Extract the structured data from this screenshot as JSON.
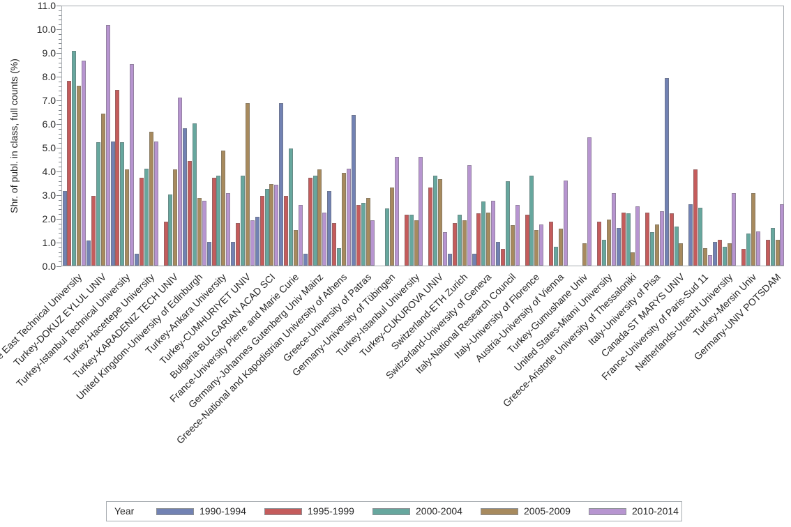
{
  "y_axis": {
    "min": 0,
    "max": 11,
    "major_step": 1,
    "minor_step": 0.2,
    "tick_labels": [
      "0.0",
      "1.0",
      "2.0",
      "3.0",
      "4.0",
      "5.0",
      "6.0",
      "7.0",
      "8.0",
      "9.0",
      "10.0",
      "11.0"
    ]
  },
  "chart_data": {
    "type": "bar",
    "title": "",
    "xlabel": "",
    "ylabel": "Shr. of publ. in class, full counts (%)",
    "ylim": [
      0,
      11
    ],
    "grid": false,
    "legend_position": "bottom",
    "legend_title": "Year",
    "categories": [
      "Turkey-Middle East Technical University",
      "Turkey-DOKUZ EYLUL UNIV",
      "Turkey-Istanbul Technical University",
      "Turkey-Hacettepe University",
      "Turkey-KARADENIZ TECH UNIV",
      "United Kingdom-University of Edinburgh",
      "Turkey-Ankara University",
      "Turkey-CUMHURIYET UNIV",
      "Bulgaria-BULGARIAN ACAD SCI",
      "France-University Pierre and Marie Curie",
      "Germany-Johannes Gutenberg Univ Mainz",
      "Greece-National and Kapodistrian University of Athens",
      "Greece-University of Patras",
      "Germany-University of Tübingen",
      "Turkey-Istanbul University",
      "Turkey-CUKUROVA UNIV",
      "Switzerland-ETH Zurich",
      "Switzerland-University of Geneva",
      "Italy-National Research Council",
      "Italy-University of Florence",
      "Austria-University of Vienna",
      "Turkey-Gumushane Univ",
      "United States-Miami University",
      "Greece-Aristotle University of Thessaloniki",
      "Italy-University of Pisa",
      "Canada-ST MARYS UNIV",
      "France-University of Paris-Sud 11",
      "Netherlands-Utrecht University",
      "Turkey-Mersin Univ",
      "Germany-UNIV POTSDAM"
    ],
    "series": [
      {
        "name": "1990-1994",
        "color": "#7282b3",
        "values": [
          3.15,
          1.05,
          5.25,
          0.5,
          null,
          5.8,
          1.0,
          1.0,
          2.05,
          6.85,
          0.5,
          3.15,
          6.35,
          null,
          null,
          null,
          0.5,
          0.5,
          1.0,
          null,
          null,
          null,
          null,
          1.6,
          null,
          7.9,
          2.6,
          1.0,
          null,
          null
        ]
      },
      {
        "name": "1995-1999",
        "color": "#c45c5c",
        "values": [
          7.8,
          2.95,
          7.4,
          3.7,
          1.85,
          4.4,
          3.7,
          1.8,
          2.95,
          2.95,
          3.7,
          1.8,
          2.55,
          null,
          2.15,
          3.3,
          1.8,
          2.2,
          0.7,
          2.15,
          1.85,
          null,
          1.85,
          2.25,
          2.25,
          2.2,
          4.05,
          1.1,
          0.7,
          1.1
        ]
      },
      {
        "name": "2000-2004",
        "color": "#67a79e",
        "values": [
          9.05,
          5.2,
          5.2,
          4.1,
          3.0,
          6.0,
          3.8,
          3.8,
          3.25,
          4.95,
          3.8,
          0.75,
          2.65,
          2.4,
          2.15,
          3.8,
          2.15,
          2.7,
          3.55,
          3.8,
          0.8,
          null,
          1.1,
          2.2,
          1.4,
          1.65,
          2.45,
          0.8,
          1.35,
          1.6
        ]
      },
      {
        "name": "2005-2009",
        "color": "#a78a5e",
        "values": [
          7.6,
          6.4,
          4.05,
          5.65,
          4.05,
          2.85,
          4.85,
          6.85,
          3.45,
          1.5,
          4.05,
          3.9,
          2.85,
          3.3,
          1.9,
          3.65,
          1.9,
          2.25,
          1.7,
          1.5,
          1.55,
          0.95,
          1.95,
          0.55,
          1.75,
          0.95,
          0.75,
          0.95,
          3.05,
          1.1
        ]
      },
      {
        "name": "2010-2014",
        "color": "#b795d0",
        "values": [
          8.65,
          10.15,
          8.5,
          5.25,
          7.1,
          2.75,
          3.05,
          1.9,
          3.4,
          2.55,
          2.25,
          4.1,
          1.9,
          4.6,
          4.6,
          1.4,
          4.25,
          2.75,
          2.55,
          1.75,
          3.6,
          5.4,
          3.05,
          2.5,
          2.3,
          null,
          0.45,
          3.05,
          1.45,
          2.6
        ]
      }
    ]
  }
}
